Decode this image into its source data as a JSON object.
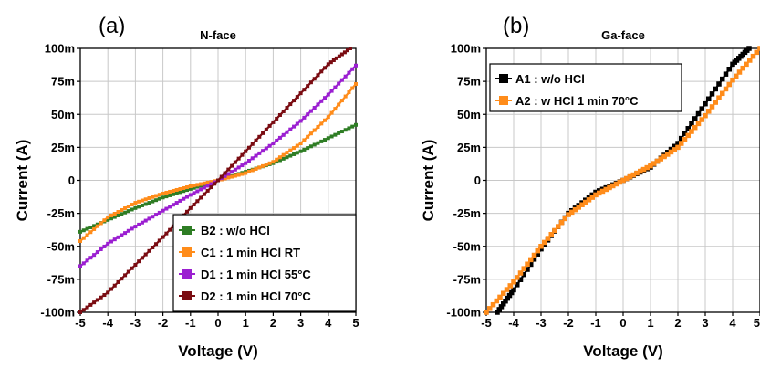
{
  "chart_data": [
    {
      "type": "line",
      "panel_label": "(a)",
      "title": "N-face",
      "xlabel": "Voltage (V)",
      "ylabel": "Current (A)",
      "xlim": [
        -5,
        5
      ],
      "ylim": [
        -0.1,
        0.1
      ],
      "x_ticks": [
        "-5",
        "-4",
        "-3",
        "-2",
        "-1",
        "0",
        "1",
        "2",
        "3",
        "4",
        "5"
      ],
      "y_ticks": [
        "-100m",
        "-75m",
        "-50m",
        "-25m",
        "0",
        "25m",
        "50m",
        "75m",
        "100m"
      ],
      "grid": true,
      "legend_position": "bottom-right",
      "series": [
        {
          "name": "B2 : w/o HCl",
          "color": "#2e7d24",
          "x": [
            -5,
            -4,
            -3,
            -2,
            -1,
            0,
            1,
            2,
            3,
            4,
            5
          ],
          "y": [
            -0.039,
            -0.03,
            -0.021,
            -0.013,
            -0.0065,
            0,
            0.0065,
            0.013,
            0.022,
            0.032,
            0.042
          ]
        },
        {
          "name": "C1 : 1 min HCl RT",
          "color": "#ff8c1a",
          "x": [
            -5,
            -4,
            -3,
            -2,
            -1,
            0,
            1,
            2,
            3,
            4,
            5
          ],
          "y": [
            -0.046,
            -0.028,
            -0.017,
            -0.01,
            -0.0045,
            0,
            0.0055,
            0.014,
            0.028,
            0.048,
            0.073
          ]
        },
        {
          "name": "D1 : 1 min HCl 55°C",
          "color": "#9b1fd1",
          "x": [
            -5,
            -4,
            -3,
            -2,
            -1,
            0,
            1,
            2,
            3,
            4,
            5
          ],
          "y": [
            -0.065,
            -0.048,
            -0.035,
            -0.023,
            -0.011,
            0,
            0.013,
            0.028,
            0.045,
            0.065,
            0.087
          ]
        },
        {
          "name": "D2 : 1 min HCl 70°C",
          "color": "#7a0c12",
          "x": [
            -5,
            -4,
            -3,
            -2,
            -1,
            0,
            1,
            2,
            3,
            4,
            4.8
          ],
          "y": [
            -0.1,
            -0.085,
            -0.064,
            -0.043,
            -0.021,
            0,
            0.022,
            0.044,
            0.066,
            0.088,
            0.1
          ]
        }
      ]
    },
    {
      "type": "line",
      "panel_label": "(b)",
      "title": "Ga-face",
      "xlabel": "Voltage (V)",
      "ylabel": "Current (A)",
      "xlim": [
        -5,
        5
      ],
      "ylim": [
        -0.1,
        0.1
      ],
      "x_ticks": [
        "-5",
        "-4",
        "-3",
        "-2",
        "-1",
        "0",
        "1",
        "2",
        "3",
        "4",
        "5"
      ],
      "y_ticks": [
        "-100m",
        "-75m",
        "-50m",
        "-25m",
        "0",
        "25m",
        "50m",
        "75m",
        "100m"
      ],
      "grid": true,
      "legend_position": "top-left",
      "series": [
        {
          "name": "A1 : w/o HCl",
          "color": "#000000",
          "x": [
            -4.6,
            -4,
            -3,
            -2,
            -1,
            0,
            1,
            2,
            3,
            4,
            4.6
          ],
          "y": [
            -0.1,
            -0.083,
            -0.052,
            -0.025,
            -0.009,
            0,
            0.01,
            0.028,
            0.058,
            0.088,
            0.1
          ]
        },
        {
          "name": "A2 : w HCl 1 min 70°C",
          "color": "#ff8c1a",
          "x": [
            -5,
            -4,
            -3,
            -2,
            -1,
            0,
            1,
            2,
            3,
            4,
            5
          ],
          "y": [
            -0.1,
            -0.077,
            -0.05,
            -0.026,
            -0.011,
            0,
            0.011,
            0.025,
            0.049,
            0.076,
            0.1
          ]
        }
      ]
    }
  ]
}
